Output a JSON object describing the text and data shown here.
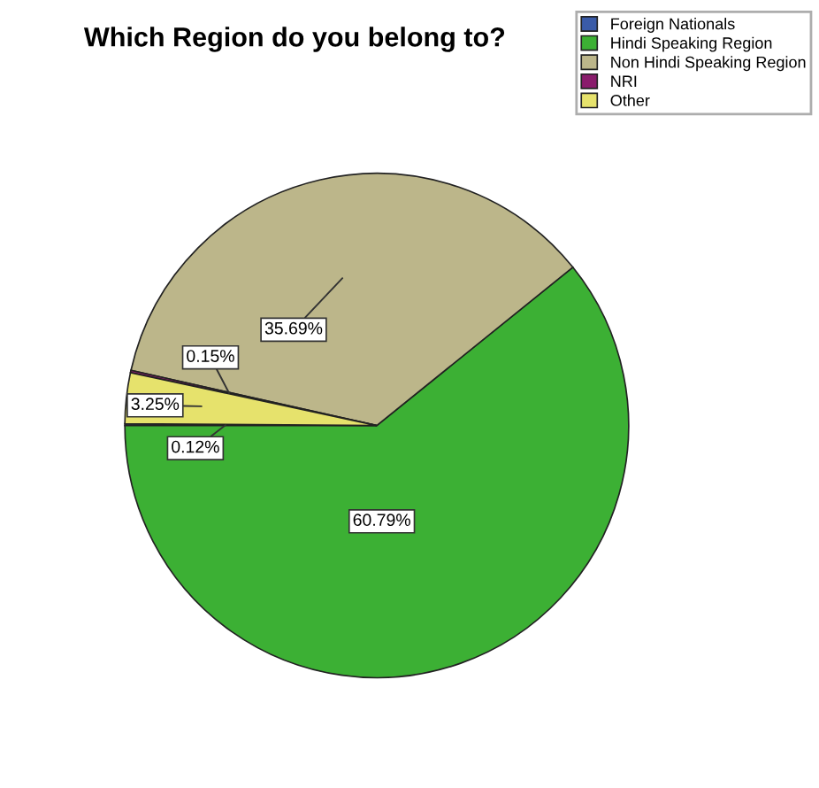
{
  "chart_data": {
    "type": "pie",
    "title": "Which Region do you belong to?",
    "categories": [
      "Foreign Nationals",
      "Hindi Speaking Region",
      "Non Hindi Speaking Region",
      "NRI",
      "Other"
    ],
    "values": [
      0.12,
      60.79,
      35.69,
      0.15,
      3.25
    ],
    "colors": [
      "#3a5ba8",
      "#3cb034",
      "#bcb68a",
      "#8a1c6c",
      "#e6e26c"
    ],
    "value_labels": [
      "0.12%",
      "60.79%",
      "35.69%",
      "0.15%",
      "3.25%"
    ],
    "legend": "top right"
  }
}
